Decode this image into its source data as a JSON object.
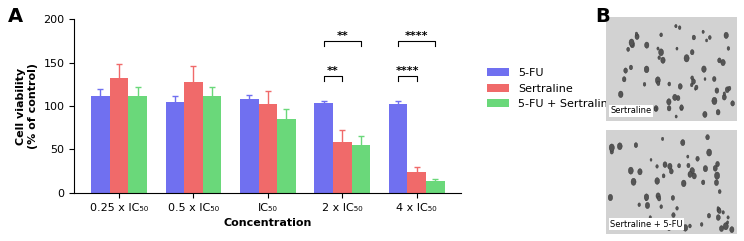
{
  "chart_data": {
    "type": "bar",
    "categories": [
      "0.25 x IC₅₀",
      "0.5 x IC₅₀",
      "IC₅₀",
      "2 x IC₅₀",
      "4 x IC₅₀"
    ],
    "x_label": "Concentration",
    "y_label": "Cell viability\n(% of control)",
    "series": [
      {
        "name": "5-FU",
        "color": "#7070f0",
        "values": [
          112,
          105,
          108,
          103,
          102
        ],
        "errors": [
          8,
          6,
          5,
          3,
          4
        ]
      },
      {
        "name": "Sertraline",
        "color": "#f06a6a",
        "values": [
          132,
          128,
          102,
          59,
          24
        ],
        "errors": [
          16,
          18,
          15,
          13,
          6
        ]
      },
      {
        "name": "5-FU + Sertraline",
        "color": "#6ad87a",
        "values": [
          112,
          112,
          85,
          55,
          14
        ],
        "errors": [
          10,
          10,
          12,
          10,
          2
        ]
      }
    ],
    "significance": [
      {
        "category": "2 x IC₅₀",
        "from": "5-FU",
        "to": "Sertraline",
        "label": "**"
      },
      {
        "category": "2 x IC₅₀",
        "from": "5-FU",
        "to": "5-FU + Sertraline",
        "label": "**"
      },
      {
        "category": "4 x IC₅₀",
        "from": "5-FU",
        "to": "Sertraline",
        "label": "****"
      },
      {
        "category": "4 x IC₅₀",
        "from": "5-FU",
        "to": "5-FU + Sertraline",
        "label": "****"
      }
    ],
    "ylim": [
      0,
      200
    ],
    "yticks": [
      0,
      50,
      100,
      150,
      200
    ],
    "legend": "center left"
  },
  "panel_labels": [
    "A",
    "B"
  ],
  "images": [
    {
      "caption": "Sertraline"
    },
    {
      "caption": "Sertraline + 5-FU"
    }
  ]
}
